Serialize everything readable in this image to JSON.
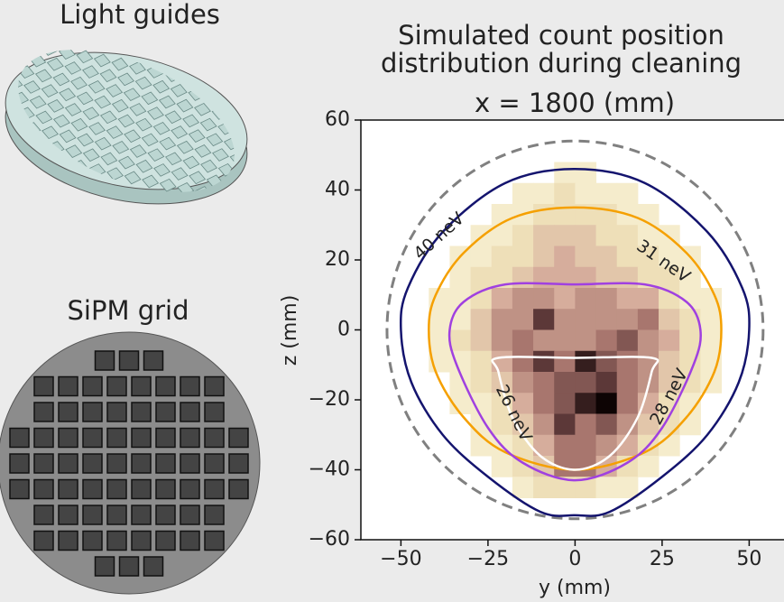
{
  "panels": {
    "light_guides_title": "Light guides",
    "sipm_title": "SiPM grid"
  },
  "chart_data": {
    "type": "heatmap",
    "title": [
      "Simulated count position",
      "distribution during cleaning"
    ],
    "subtitle": "x = 1800 (mm)",
    "xlabel": "y (mm)",
    "ylabel": "z (mm)",
    "xlim": [
      -61.5,
      60
    ],
    "ylim": [
      -60,
      60
    ],
    "xticks": [
      {
        "value": -50,
        "label": "−50"
      },
      {
        "value": -25,
        "label": "−25"
      },
      0,
      25,
      50
    ],
    "yticks": [
      {
        "value": -60,
        "label": "−60"
      },
      {
        "value": -40,
        "label": "−40"
      },
      {
        "value": -20,
        "label": "−20"
      },
      0,
      20,
      40,
      60
    ],
    "colormap": [
      "#fbf8e0",
      "#eedfb8",
      "#d6ad9c",
      "#a8766e",
      "#5c3838",
      "#0d0404"
    ],
    "heatmap": {
      "x_edges": [
        -48,
        -42,
        -36,
        -30,
        -24,
        -18,
        -12,
        -6,
        0,
        6,
        12,
        18,
        24,
        30,
        36,
        42,
        48
      ],
      "y_edges": [
        48,
        42,
        36,
        30,
        24,
        18,
        12,
        6,
        0,
        -6,
        -12,
        -18,
        -24,
        -30,
        -36,
        -42,
        -48
      ],
      "values": [
        [
          0,
          0,
          0,
          0,
          0,
          0,
          0,
          1,
          1,
          0,
          0,
          0,
          0,
          0,
          0,
          0
        ],
        [
          0,
          0,
          0,
          0,
          0,
          1,
          1,
          2,
          1,
          1,
          1,
          0,
          0,
          0,
          0,
          0
        ],
        [
          0,
          0,
          0,
          0,
          1,
          1,
          2,
          2,
          2,
          2,
          1,
          1,
          0,
          0,
          0,
          0
        ],
        [
          0,
          0,
          0,
          1,
          1,
          2,
          3,
          3,
          3,
          2,
          2,
          1,
          1,
          0,
          0,
          0
        ],
        [
          0,
          0,
          1,
          1,
          2,
          2,
          3,
          4,
          3,
          3,
          2,
          2,
          1,
          1,
          0,
          0
        ],
        [
          0,
          0,
          1,
          2,
          2,
          3,
          4,
          4,
          4,
          3,
          3,
          2,
          2,
          1,
          0,
          0
        ],
        [
          0,
          1,
          1,
          2,
          4,
          5,
          5,
          4,
          5,
          5,
          4,
          4,
          2,
          1,
          1,
          0
        ],
        [
          0,
          1,
          1,
          3,
          5,
          5,
          8,
          5,
          5,
          5,
          5,
          6,
          3,
          2,
          1,
          0
        ],
        [
          0,
          1,
          2,
          3,
          5,
          6,
          5,
          5,
          5,
          6,
          7,
          5,
          4,
          2,
          1,
          0
        ],
        [
          0,
          1,
          1,
          2,
          4,
          6,
          8,
          6,
          9,
          7,
          6,
          5,
          3,
          2,
          1,
          0
        ],
        [
          0,
          0,
          1,
          2,
          3,
          5,
          6,
          7,
          7,
          8,
          6,
          5,
          3,
          2,
          1,
          0
        ],
        [
          0,
          0,
          1,
          1,
          2,
          4,
          6,
          7,
          9,
          10,
          6,
          4,
          2,
          1,
          0,
          0
        ],
        [
          0,
          0,
          0,
          1,
          2,
          3,
          5,
          8,
          6,
          7,
          5,
          3,
          2,
          1,
          0,
          0
        ],
        [
          0,
          0,
          0,
          1,
          1,
          2,
          4,
          6,
          6,
          5,
          4,
          2,
          1,
          0,
          0,
          0
        ],
        [
          0,
          0,
          0,
          0,
          1,
          2,
          3,
          6,
          6,
          4,
          2,
          1,
          0,
          0,
          0,
          0
        ],
        [
          0,
          0,
          0,
          0,
          0,
          1,
          2,
          2,
          2,
          1,
          1,
          0,
          0,
          0,
          0,
          0
        ]
      ],
      "vmax": 10
    },
    "boundary": {
      "radius": 54,
      "color": "#808080"
    },
    "contours": [
      {
        "name": "40 neV",
        "color": "#14146e",
        "x": [
          0,
          20,
          38,
          48,
          50,
          47,
          38,
          25,
          10,
          0,
          -10,
          -25,
          -38,
          -47,
          -50,
          -48,
          -38,
          -20
        ],
        "y": [
          46,
          42,
          28,
          12,
          0,
          -15,
          -30,
          -42,
          -52,
          -53,
          -52,
          -42,
          -30,
          -15,
          0,
          12,
          28,
          42
        ]
      },
      {
        "name": "31 neV",
        "color": "#f5a000",
        "x": [
          0,
          18,
          32,
          40,
          42,
          40,
          32,
          20,
          0,
          -20,
          -32,
          -40,
          -42,
          -40,
          -32,
          -18
        ],
        "y": [
          35,
          32,
          22,
          10,
          0,
          -12,
          -25,
          -35,
          -40,
          -35,
          -25,
          -12,
          0,
          10,
          22,
          32
        ]
      },
      {
        "name": "28 neV",
        "color": "#a040e0",
        "x": [
          0,
          20,
          32,
          36,
          34,
          25,
          15,
          0,
          -15,
          -25,
          -34,
          -36,
          -32,
          -20
        ],
        "y": [
          13,
          13,
          8,
          0,
          -10,
          -28,
          -38,
          -43,
          -38,
          -28,
          -10,
          0,
          8,
          13
        ]
      },
      {
        "name": "26 neV",
        "color": "#ffffff",
        "x": [
          -22,
          0,
          22,
          22,
          18,
          10,
          0,
          -10,
          -18,
          -22
        ],
        "y": [
          -8,
          -8,
          -8,
          -12,
          -25,
          -36,
          -40,
          -36,
          -25,
          -12
        ]
      }
    ]
  }
}
